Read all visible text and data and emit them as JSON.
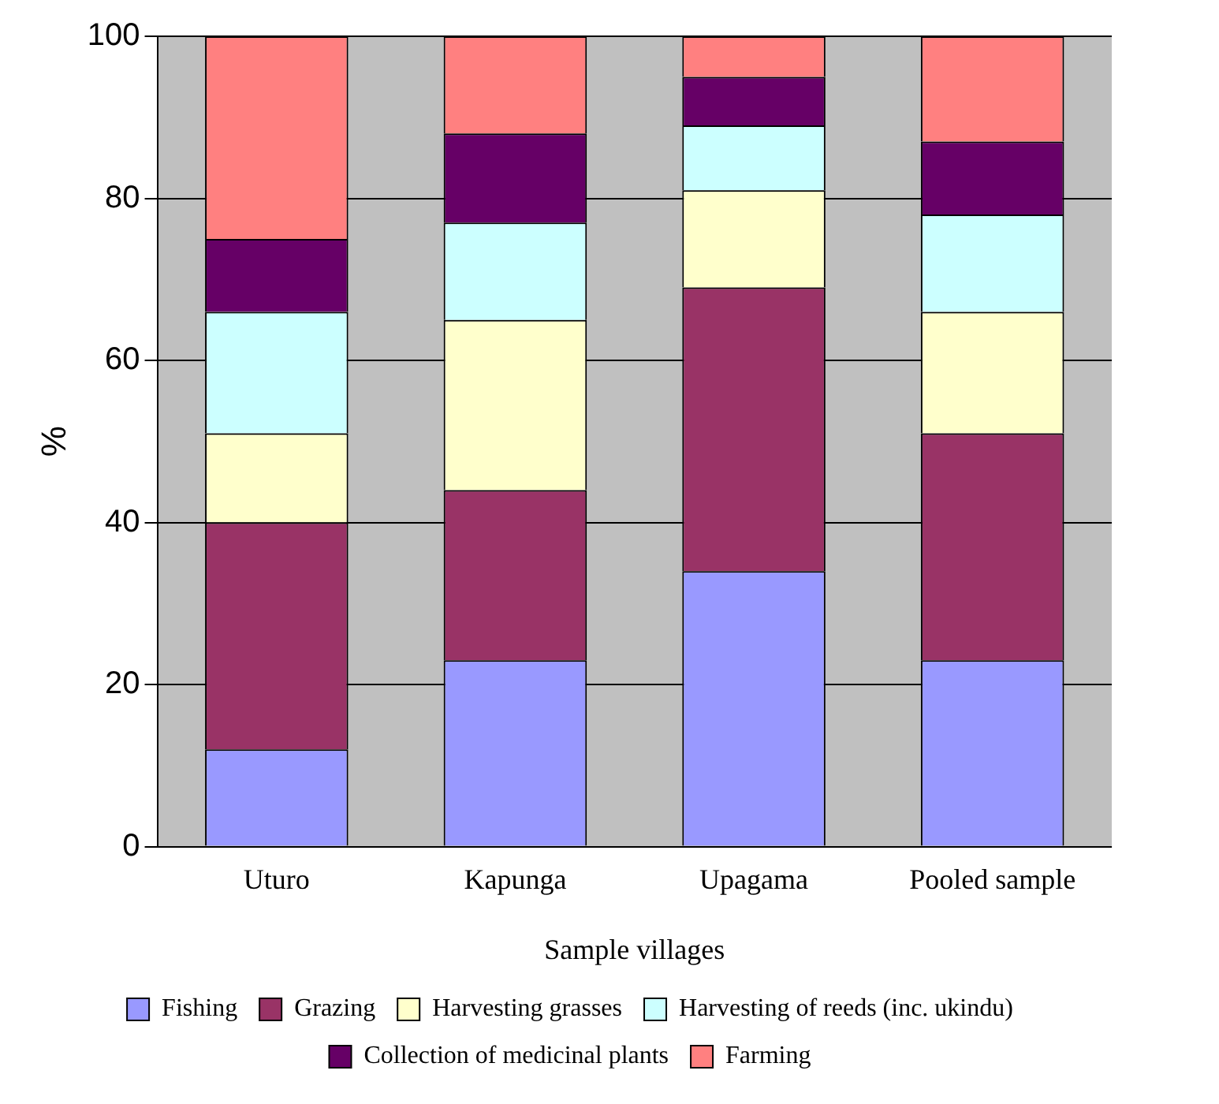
{
  "chart_data": {
    "type": "bar",
    "stacked": true,
    "xlabel": "Sample villages",
    "ylabel": "%",
    "categories": [
      "Uturo",
      "Kapunga",
      "Upagama",
      "Pooled sample"
    ],
    "series": [
      {
        "name": "Fishing",
        "color": "#9999ff",
        "values": [
          12,
          23,
          34,
          23
        ]
      },
      {
        "name": "Grazing",
        "color": "#993366",
        "values": [
          28,
          21,
          35,
          28
        ]
      },
      {
        "name": "Harvesting grasses",
        "color": "#ffffcc",
        "values": [
          11,
          21,
          12,
          15
        ]
      },
      {
        "name": "Harvesting of reeds (inc. ukindu)",
        "color": "#ccffff",
        "values": [
          15,
          12,
          8,
          12
        ]
      },
      {
        "name": "Collection of medicinal plants",
        "color": "#660066",
        "values": [
          9,
          11,
          6,
          9
        ]
      },
      {
        "name": "Farming",
        "color": "#ff8080",
        "values": [
          25,
          12,
          5,
          13
        ]
      }
    ],
    "ylim": [
      0,
      100
    ],
    "yticks": [
      0,
      20,
      40,
      60,
      80,
      100
    ],
    "grid": "y",
    "legend": "bottom"
  }
}
